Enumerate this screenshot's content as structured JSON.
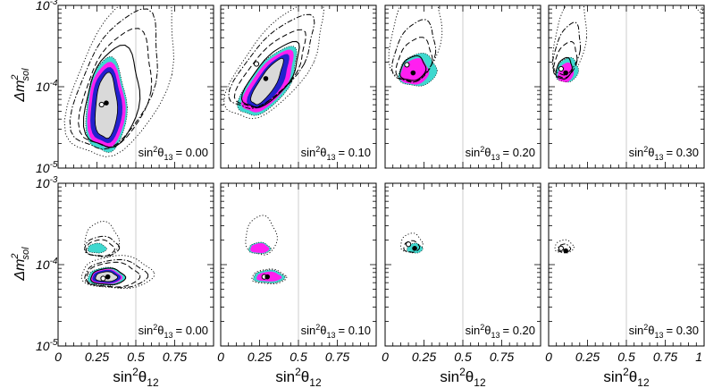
{
  "chart_data": {
    "type": "contour-grid",
    "rows": 2,
    "cols": 4,
    "xlabel_base": "sin",
    "xlabel_sup": "2",
    "xlabel_theta": "θ",
    "xlabel_sub": "12",
    "ylabel_base": "Δm",
    "ylabel_sup": "2",
    "ylabel_sub": "sol",
    "x_ticks": [
      "0",
      "0.25",
      "0.5",
      "0.75",
      "1"
    ],
    "x_tick_values": [
      0,
      0.25,
      0.5,
      0.75,
      1
    ],
    "xlim": [
      0,
      1
    ],
    "ylim_log10": [
      -5,
      -3
    ],
    "y_ticks": [
      {
        "base": "10",
        "exp": "-3",
        "value": -3
      },
      {
        "base": "10",
        "exp": "-4",
        "value": -4
      },
      {
        "base": "10",
        "exp": "-5",
        "value": -5
      }
    ],
    "reference_line_x": 0.5,
    "annotation_prefix": "sin",
    "annotation_sup": "2",
    "annotation_theta": "θ",
    "annotation_sub": "13",
    "annotation_values": [
      "= 0.00",
      "= 0.10",
      "= 0.20",
      "= 0.30"
    ],
    "colors": {
      "fill_outer": "#3fd8cf",
      "fill_mid": "#ff1ff0",
      "fill_inner": "#2222cc",
      "fill_core": "#d9d9d9",
      "line": "#000000",
      "ref": "#c0c0c0"
    },
    "top_row_best_fits": [
      {
        "x": 0.31,
        "logy": -4.2
      },
      {
        "x": 0.29,
        "logy": -3.9
      },
      {
        "x": 0.18,
        "logy": -3.83
      },
      {
        "x": 0.11,
        "logy": -3.83
      }
    ],
    "top_row_alt_fits": [
      {
        "x": 0.28,
        "logy": -4.22
      },
      {
        "x": 0.23,
        "logy": -3.72
      },
      {
        "x": 0.14,
        "logy": -3.73
      },
      {
        "x": 0.08,
        "logy": -3.78
      }
    ],
    "bottom_row_best_fits": [
      {
        "x": 0.32,
        "logy": -4.15
      },
      {
        "x": 0.3,
        "logy": -4.15
      },
      {
        "x": 0.19,
        "logy": -3.8
      },
      {
        "x": 0.11,
        "logy": -3.83
      }
    ],
    "bottom_row_alt_fits": [
      {
        "x": 0.29,
        "logy": -4.17
      },
      {
        "x": 0.28,
        "logy": -4.15
      },
      {
        "x": 0.15,
        "logy": -3.75
      },
      {
        "x": 0.08,
        "logy": -3.8
      }
    ]
  }
}
